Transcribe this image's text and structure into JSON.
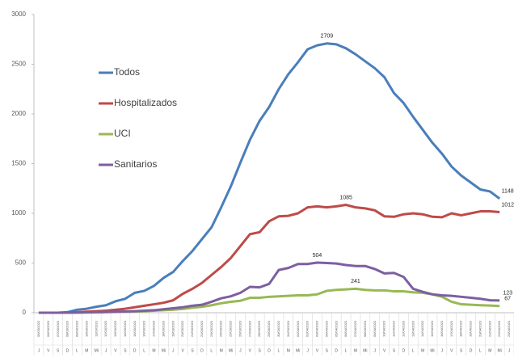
{
  "chart_data": {
    "type": "line",
    "categories": [
      "05/03/2020",
      "06/03/2020",
      "07/03/2020",
      "08/03/2020",
      "09/03/2020",
      "10/03/2020",
      "11/03/2020",
      "12/03/2020",
      "13/03/2020",
      "14/03/2020",
      "15/03/2020",
      "16/03/2020",
      "17/03/2020",
      "18/03/2020",
      "19/03/2020",
      "20/03/2020",
      "21/03/2020",
      "22/03/2020",
      "23/03/2020",
      "24/03/2020",
      "25/03/2020",
      "26/03/2020",
      "27/03/2020",
      "28/03/2020",
      "29/03/2020",
      "30/03/2020",
      "31/03/2020",
      "01/04/2020",
      "02/04/2020",
      "03/04/2020",
      "04/04/2020",
      "05/04/2020",
      "06/04/2020",
      "07/04/2020",
      "08/04/2020",
      "09/04/2020",
      "10/04/2020",
      "11/04/2020",
      "12/04/2020",
      "13/04/2020",
      "14/04/2020",
      "15/04/2020",
      "16/04/2020",
      "17/04/2020",
      "18/04/2020",
      "19/04/2020",
      "20/04/2020",
      "21/04/2020",
      "22/04/2020",
      "23/04/2020"
    ],
    "weekdays": [
      "J",
      "V",
      "S",
      "D",
      "L",
      "M",
      "Mi",
      "J",
      "V",
      "S",
      "D",
      "L",
      "M",
      "Mi",
      "J",
      "V",
      "S",
      "D",
      "L",
      "M",
      "Mi",
      "J",
      "V",
      "S",
      "D",
      "L",
      "M",
      "Mi",
      "J",
      "V",
      "S",
      "D",
      "L",
      "M",
      "Mi",
      "J",
      "V",
      "S",
      "D",
      "L",
      "M",
      "Mi",
      "J",
      "V",
      "S",
      "D",
      "L",
      "M",
      "Mi",
      "J"
    ],
    "series": [
      {
        "name": "Todos",
        "color": "#4a7ebb",
        "values": [
          0,
          0,
          0,
          5,
          30,
          40,
          60,
          75,
          115,
          140,
          200,
          220,
          270,
          350,
          410,
          520,
          620,
          740,
          860,
          1060,
          1270,
          1510,
          1740,
          1930,
          2070,
          2250,
          2400,
          2520,
          2650,
          2690,
          2709,
          2700,
          2660,
          2600,
          2530,
          2460,
          2370,
          2210,
          2110,
          1970,
          1840,
          1710,
          1600,
          1470,
          1380,
          1310,
          1240,
          1220,
          1148,
          null
        ]
      },
      {
        "name": "Hospitalizados",
        "color": "#be4b48",
        "values": [
          0,
          0,
          0,
          2,
          5,
          10,
          15,
          20,
          30,
          40,
          55,
          70,
          85,
          100,
          125,
          190,
          240,
          300,
          380,
          460,
          550,
          670,
          790,
          810,
          920,
          970,
          975,
          1000,
          1060,
          1070,
          1060,
          1070,
          1085,
          1060,
          1050,
          1030,
          970,
          965,
          990,
          1000,
          990,
          965,
          960,
          1000,
          980,
          1000,
          1020,
          1020,
          1012,
          null
        ]
      },
      {
        "name": "UCI",
        "color": "#98b954",
        "values": [
          0,
          0,
          0,
          0,
          0,
          2,
          3,
          5,
          7,
          10,
          12,
          15,
          20,
          25,
          30,
          38,
          50,
          60,
          75,
          95,
          110,
          120,
          150,
          150,
          160,
          165,
          170,
          175,
          175,
          185,
          220,
          230,
          235,
          241,
          230,
          225,
          225,
          215,
          215,
          205,
          200,
          185,
          160,
          110,
          85,
          80,
          75,
          72,
          67,
          null
        ]
      },
      {
        "name": "Sanitarios",
        "color": "#7d5fa0",
        "values": [
          0,
          0,
          0,
          0,
          2,
          4,
          6,
          8,
          10,
          12,
          15,
          20,
          25,
          35,
          45,
          55,
          70,
          80,
          110,
          145,
          165,
          200,
          260,
          255,
          290,
          430,
          450,
          490,
          490,
          504,
          500,
          495,
          480,
          470,
          470,
          440,
          395,
          400,
          360,
          240,
          210,
          185,
          175,
          170,
          160,
          150,
          140,
          125,
          123,
          null
        ]
      }
    ],
    "ylim": [
      0,
      3000
    ],
    "yticks": [
      0,
      500,
      1000,
      1500,
      2000,
      2500,
      3000
    ],
    "data_labels": [
      [
        0,
        30
      ],
      [
        0,
        48
      ],
      [
        1,
        32
      ],
      [
        1,
        48
      ],
      [
        3,
        29
      ],
      [
        2,
        33
      ],
      [
        3,
        48
      ],
      [
        2,
        48
      ]
    ]
  }
}
